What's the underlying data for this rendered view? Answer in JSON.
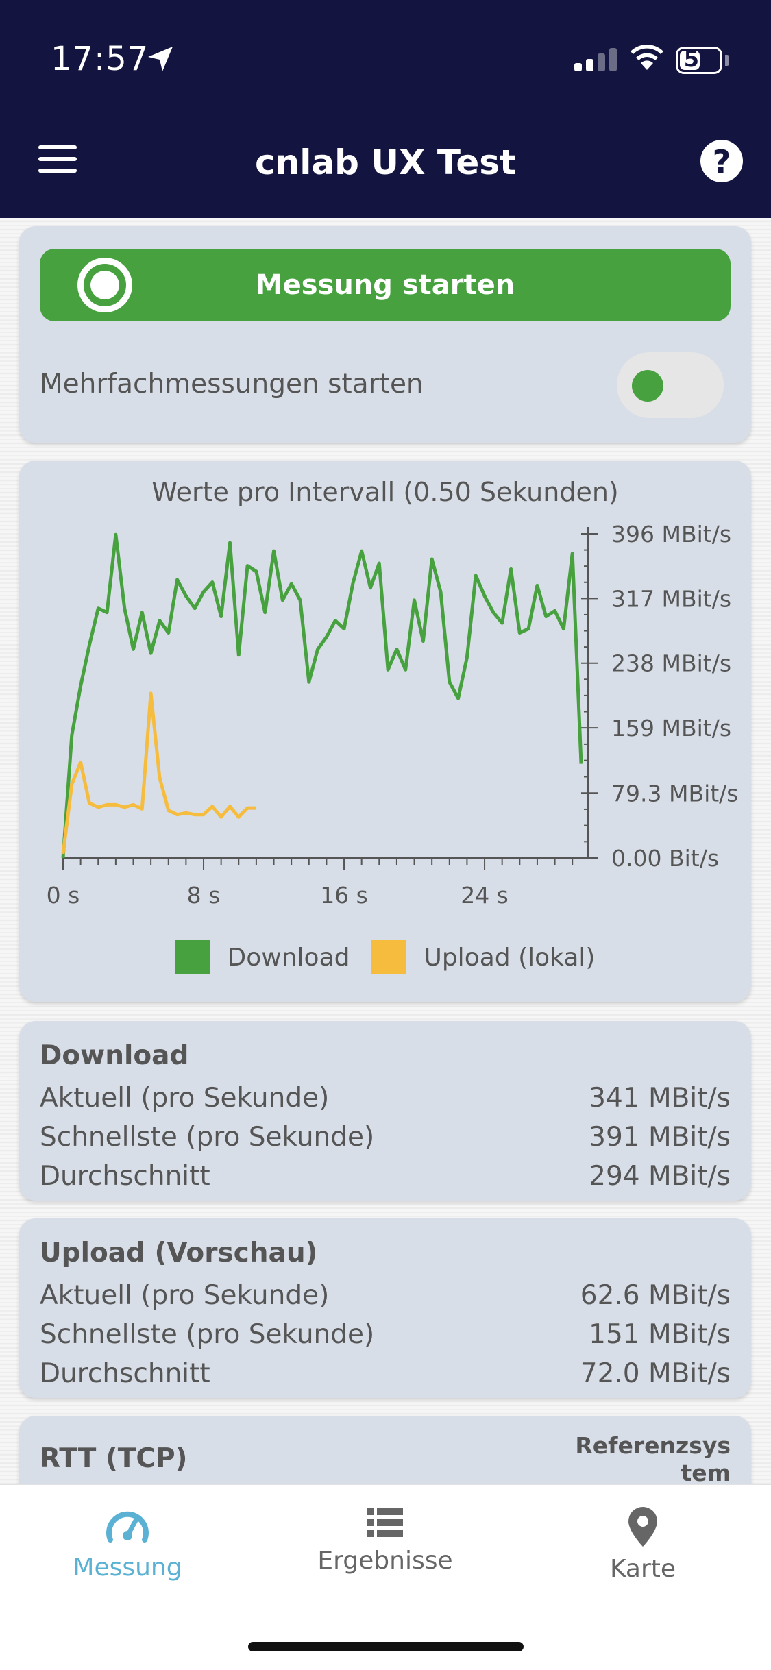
{
  "status_bar": {
    "time": "17:57",
    "battery": "51",
    "battery_level": 0.51
  },
  "header": {
    "title": "cnlab UX Test"
  },
  "controls": {
    "start_label": "Messung starten",
    "multi_label": "Mehrfachmessungen starten",
    "multi_enabled": false
  },
  "chart": {
    "title": "Werte pro Intervall (0.50 Sekunden)"
  },
  "chart_data": {
    "type": "line",
    "title": "Werte pro Intervall (0.50 Sekunden)",
    "x_unit": "s",
    "xlim": [
      0,
      29.5
    ],
    "x_ticks": [
      "0 s",
      "8 s",
      "16 s",
      "24 s"
    ],
    "x_tick_values": [
      0,
      8,
      16,
      24
    ],
    "ylim": [
      0,
      396
    ],
    "y_ticks": [
      "0.00 Bit/s",
      "79.3 MBit/s",
      "159 MBit/s",
      "238 MBit/s",
      "317 MBit/s",
      "396 MBit/s"
    ],
    "y_tick_values": [
      0,
      79.3,
      159,
      238,
      317,
      396
    ],
    "legend_position": "bottom",
    "series": [
      {
        "name": "Download",
        "color": "#47a13f",
        "points": [
          [
            0,
            0
          ],
          [
            0.5,
            150
          ],
          [
            1,
            210
          ],
          [
            1.5,
            260
          ],
          [
            2,
            305
          ],
          [
            2.5,
            300
          ],
          [
            3,
            395
          ],
          [
            3.5,
            305
          ],
          [
            4,
            255
          ],
          [
            4.5,
            300
          ],
          [
            5,
            250
          ],
          [
            5.5,
            290
          ],
          [
            6,
            275
          ],
          [
            6.5,
            340
          ],
          [
            7,
            320
          ],
          [
            7.5,
            305
          ],
          [
            8,
            325
          ],
          [
            8.5,
            337
          ],
          [
            9,
            295
          ],
          [
            9.5,
            385
          ],
          [
            10,
            248
          ],
          [
            10.5,
            357
          ],
          [
            11,
            350
          ],
          [
            11.5,
            300
          ],
          [
            12,
            375
          ],
          [
            12.5,
            315
          ],
          [
            13,
            335
          ],
          [
            13.5,
            315
          ],
          [
            14,
            215
          ],
          [
            14.5,
            255
          ],
          [
            15,
            270
          ],
          [
            15.5,
            290
          ],
          [
            16,
            280
          ],
          [
            16.5,
            335
          ],
          [
            17,
            375
          ],
          [
            17.5,
            330
          ],
          [
            18,
            360
          ],
          [
            18.5,
            230
          ],
          [
            19,
            255
          ],
          [
            19.5,
            230
          ],
          [
            20,
            315
          ],
          [
            20.5,
            265
          ],
          [
            21,
            365
          ],
          [
            21.5,
            325
          ],
          [
            22,
            215
          ],
          [
            22.5,
            195
          ],
          [
            23,
            245
          ],
          [
            23.5,
            345
          ],
          [
            24,
            320
          ],
          [
            24.5,
            300
          ],
          [
            25,
            287
          ],
          [
            25.5,
            353
          ],
          [
            26,
            275
          ],
          [
            26.5,
            280
          ],
          [
            27,
            333
          ],
          [
            27.5,
            295
          ],
          [
            28,
            302
          ],
          [
            28.5,
            280
          ],
          [
            29,
            372
          ],
          [
            29.5,
            115
          ]
        ]
      },
      {
        "name": "Upload (lokal)",
        "color": "#f5bc3e",
        "points": [
          [
            0,
            5
          ],
          [
            0.5,
            90
          ],
          [
            1,
            117
          ],
          [
            1.5,
            67
          ],
          [
            2,
            62
          ],
          [
            2.5,
            65
          ],
          [
            3,
            65
          ],
          [
            3.5,
            62
          ],
          [
            4,
            65
          ],
          [
            4.5,
            60
          ],
          [
            5,
            201
          ],
          [
            5.5,
            98
          ],
          [
            6,
            58
          ],
          [
            6.5,
            53
          ],
          [
            7,
            55
          ],
          [
            7.5,
            53
          ],
          [
            8,
            53
          ],
          [
            8.5,
            63
          ],
          [
            9,
            50
          ],
          [
            9.5,
            63
          ],
          [
            10,
            50
          ],
          [
            10.5,
            61
          ],
          [
            11,
            61
          ]
        ]
      }
    ]
  },
  "download": {
    "title": "Download",
    "rows": [
      {
        "label": "Aktuell (pro Sekunde)",
        "value": "341 MBit/s"
      },
      {
        "label": "Schnellste (pro Sekunde)",
        "value": "391 MBit/s"
      },
      {
        "label": "Durchschnitt",
        "value": "294 MBit/s"
      }
    ]
  },
  "upload": {
    "title": "Upload (Vorschau)",
    "rows": [
      {
        "label": "Aktuell (pro Sekunde)",
        "value": "62.6 MBit/s"
      },
      {
        "label": "Schnellste (pro Sekunde)",
        "value": "151 MBit/s"
      },
      {
        "label": "Durchschnitt",
        "value": "72.0 MBit/s"
      }
    ]
  },
  "rtt": {
    "title": "RTT (TCP)",
    "reference": "Referenzsystem"
  },
  "tabs": [
    {
      "label": "Messung",
      "icon": "speedometer-icon",
      "active": true,
      "color": "#5ab1d3"
    },
    {
      "label": "Ergebnisse",
      "icon": "list-icon",
      "active": false,
      "color": "#666666"
    },
    {
      "label": "Karte",
      "icon": "map-pin-icon",
      "active": false,
      "color": "#666666"
    }
  ]
}
